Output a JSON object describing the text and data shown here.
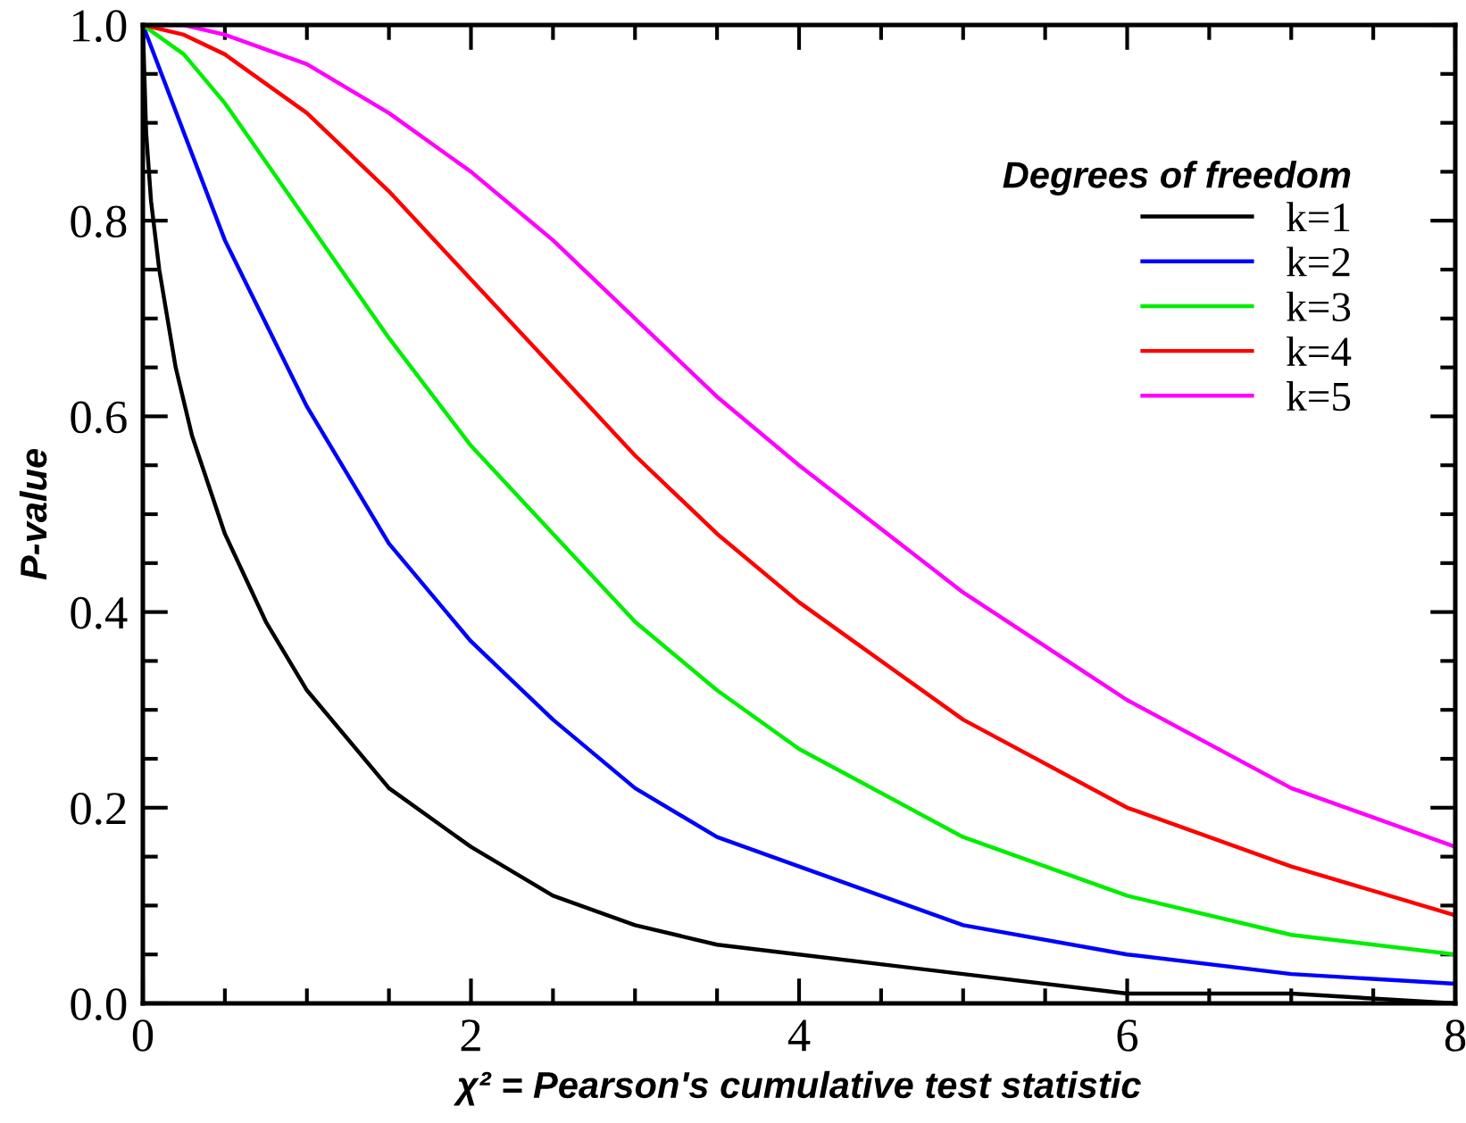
{
  "chart_data": {
    "type": "line",
    "xlabel": "χ² = Pearson's cumulative test statistic",
    "ylabel": "P-value",
    "legend_title": "Degrees of freedom",
    "legend": "top right",
    "grid": false,
    "marker": "none",
    "line_style": "solid",
    "xlim": [
      0,
      8
    ],
    "ylim": [
      0,
      1
    ],
    "xticks": [
      0,
      2,
      4,
      6,
      8
    ],
    "yticks": [
      {
        "value": 0,
        "label": "0.0"
      },
      0.2,
      0.4,
      0.6,
      0.8,
      {
        "value": 1,
        "label": "1.0"
      }
    ],
    "series": [
      {
        "name": "k=1",
        "color": "#000000",
        "x": [
          0,
          0.02,
          0.05,
          0.1,
          0.2,
          0.3,
          0.5,
          0.75,
          1,
          1.5,
          2,
          2.5,
          3,
          3.5,
          4,
          5,
          6,
          7,
          8
        ],
        "values": [
          1.0,
          0.89,
          0.82,
          0.75,
          0.65,
          0.58,
          0.48,
          0.39,
          0.32,
          0.22,
          0.16,
          0.11,
          0.08,
          0.06,
          0.05,
          0.03,
          0.01,
          0.01,
          0.0
        ]
      },
      {
        "name": "k=2",
        "color": "#0000ff",
        "x": [
          0,
          0.5,
          1,
          1.5,
          2,
          2.5,
          3,
          3.5,
          4,
          5,
          6,
          7,
          8
        ],
        "values": [
          1.0,
          0.78,
          0.61,
          0.47,
          0.37,
          0.29,
          0.22,
          0.17,
          0.14,
          0.08,
          0.05,
          0.03,
          0.02
        ]
      },
      {
        "name": "k=3",
        "color": "#00ee00",
        "x": [
          0,
          0.25,
          0.5,
          1,
          1.5,
          2,
          2.5,
          3,
          3.5,
          4,
          5,
          6,
          7,
          8
        ],
        "values": [
          1.0,
          0.97,
          0.92,
          0.8,
          0.68,
          0.57,
          0.48,
          0.39,
          0.32,
          0.26,
          0.17,
          0.11,
          0.07,
          0.05
        ]
      },
      {
        "name": "k=4",
        "color": "#ff0000",
        "x": [
          0,
          0.25,
          0.5,
          1,
          1.5,
          2,
          2.5,
          3,
          3.5,
          4,
          5,
          6,
          7,
          8
        ],
        "values": [
          1.0,
          0.99,
          0.97,
          0.91,
          0.83,
          0.74,
          0.65,
          0.56,
          0.48,
          0.41,
          0.29,
          0.2,
          0.14,
          0.09
        ]
      },
      {
        "name": "k=5",
        "color": "#ff00ff",
        "x": [
          0,
          0.25,
          0.5,
          1,
          1.5,
          2,
          2.5,
          3,
          3.5,
          4,
          5,
          6,
          7,
          8
        ],
        "values": [
          1.0,
          1.0,
          0.99,
          0.96,
          0.91,
          0.85,
          0.78,
          0.7,
          0.62,
          0.55,
          0.42,
          0.31,
          0.22,
          0.16
        ]
      }
    ]
  }
}
